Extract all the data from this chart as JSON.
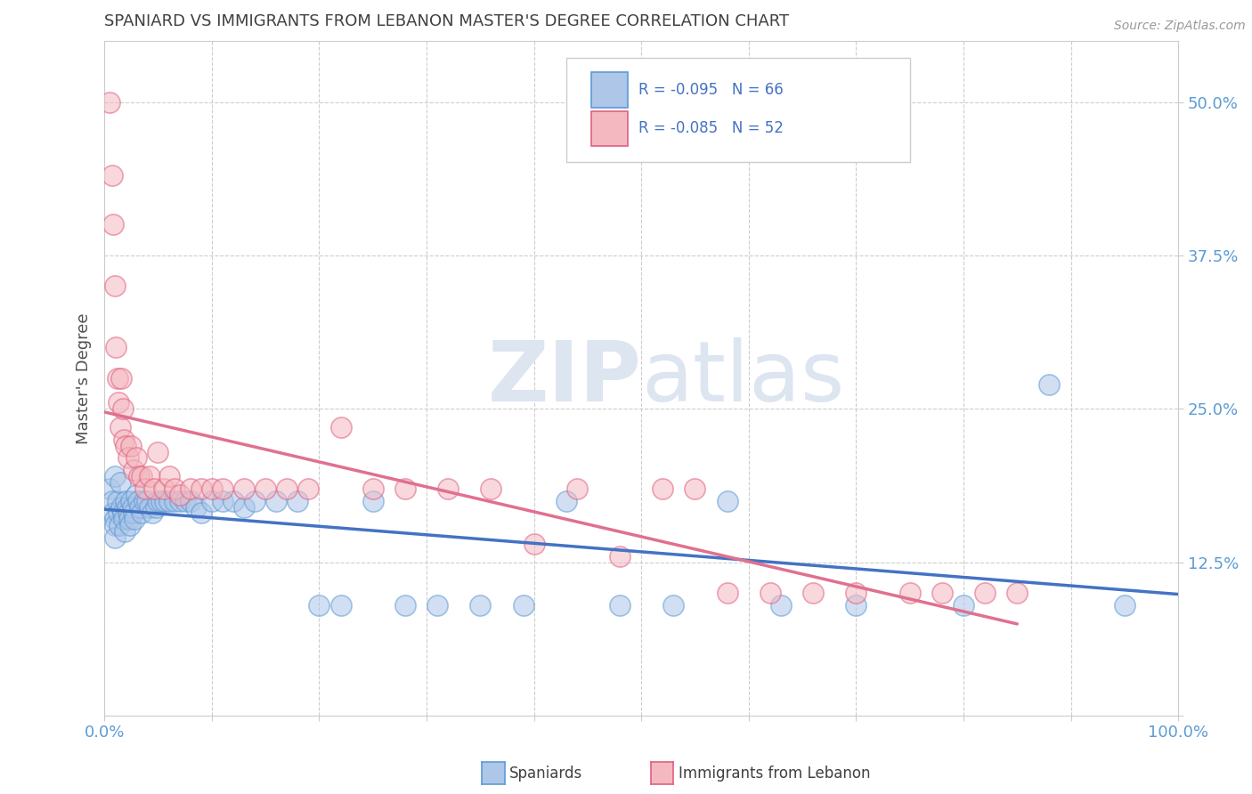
{
  "title": "SPANIARD VS IMMIGRANTS FROM LEBANON MASTER'S DEGREE CORRELATION CHART",
  "source_text": "Source: ZipAtlas.com",
  "ylabel": "Master's Degree",
  "legend_label_1": "Spaniards",
  "legend_label_2": "Immigrants from Lebanon",
  "r1": -0.095,
  "n1": 66,
  "r2": -0.085,
  "n2": 52,
  "color1": "#aec6e8",
  "color2": "#f4b8c0",
  "edge_color1": "#5b9bd5",
  "edge_color2": "#e06080",
  "line_color1": "#4472c4",
  "line_color2": "#e07090",
  "bg_color": "#ffffff",
  "grid_color": "#c8c8c8",
  "axis_label_color": "#5b9bd5",
  "title_color": "#404040",
  "watermark_color": "#dde5f0",
  "xlim": [
    0.0,
    1.0
  ],
  "ylim": [
    0.0,
    0.55
  ],
  "xticks": [
    0.0,
    0.1,
    0.2,
    0.3,
    0.4,
    0.5,
    0.6,
    0.7,
    0.8,
    0.9,
    1.0
  ],
  "yticks": [
    0.0,
    0.125,
    0.25,
    0.375,
    0.5
  ],
  "xtick_labels": [
    "0.0%",
    "",
    "",
    "",
    "",
    "",
    "",
    "",
    "",
    "",
    "100.0%"
  ],
  "ytick_labels": [
    "",
    "12.5%",
    "25.0%",
    "37.5%",
    "50.0%"
  ],
  "spaniards_x": [
    0.005,
    0.007,
    0.008,
    0.01,
    0.01,
    0.01,
    0.01,
    0.012,
    0.013,
    0.014,
    0.015,
    0.016,
    0.017,
    0.018,
    0.019,
    0.02,
    0.021,
    0.022,
    0.023,
    0.024,
    0.025,
    0.026,
    0.027,
    0.028,
    0.03,
    0.031,
    0.033,
    0.035,
    0.037,
    0.04,
    0.042,
    0.045,
    0.048,
    0.05,
    0.053,
    0.056,
    0.06,
    0.065,
    0.07,
    0.075,
    0.08,
    0.085,
    0.09,
    0.1,
    0.11,
    0.12,
    0.13,
    0.14,
    0.16,
    0.18,
    0.2,
    0.22,
    0.25,
    0.28,
    0.31,
    0.35,
    0.39,
    0.43,
    0.48,
    0.53,
    0.58,
    0.63,
    0.7,
    0.8,
    0.88,
    0.95
  ],
  "spaniards_y": [
    0.185,
    0.175,
    0.165,
    0.195,
    0.16,
    0.155,
    0.145,
    0.175,
    0.165,
    0.155,
    0.19,
    0.17,
    0.165,
    0.16,
    0.15,
    0.175,
    0.17,
    0.165,
    0.16,
    0.155,
    0.175,
    0.17,
    0.165,
    0.16,
    0.18,
    0.175,
    0.17,
    0.165,
    0.175,
    0.175,
    0.17,
    0.165,
    0.17,
    0.175,
    0.175,
    0.175,
    0.175,
    0.175,
    0.175,
    0.175,
    0.175,
    0.17,
    0.165,
    0.175,
    0.175,
    0.175,
    0.17,
    0.175,
    0.175,
    0.175,
    0.09,
    0.09,
    0.175,
    0.09,
    0.09,
    0.09,
    0.09,
    0.175,
    0.09,
    0.09,
    0.175,
    0.09,
    0.09,
    0.09,
    0.27,
    0.09
  ],
  "lebanon_x": [
    0.005,
    0.007,
    0.008,
    0.01,
    0.011,
    0.012,
    0.013,
    0.015,
    0.016,
    0.017,
    0.018,
    0.02,
    0.022,
    0.025,
    0.027,
    0.03,
    0.032,
    0.035,
    0.038,
    0.042,
    0.046,
    0.05,
    0.055,
    0.06,
    0.065,
    0.07,
    0.08,
    0.09,
    0.1,
    0.11,
    0.13,
    0.15,
    0.17,
    0.19,
    0.22,
    0.25,
    0.28,
    0.32,
    0.36,
    0.4,
    0.44,
    0.48,
    0.52,
    0.55,
    0.58,
    0.62,
    0.66,
    0.7,
    0.75,
    0.78,
    0.82,
    0.85
  ],
  "lebanon_y": [
    0.5,
    0.44,
    0.4,
    0.35,
    0.3,
    0.275,
    0.255,
    0.235,
    0.275,
    0.25,
    0.225,
    0.22,
    0.21,
    0.22,
    0.2,
    0.21,
    0.195,
    0.195,
    0.185,
    0.195,
    0.185,
    0.215,
    0.185,
    0.195,
    0.185,
    0.18,
    0.185,
    0.185,
    0.185,
    0.185,
    0.185,
    0.185,
    0.185,
    0.185,
    0.235,
    0.185,
    0.185,
    0.185,
    0.185,
    0.14,
    0.185,
    0.13,
    0.185,
    0.185,
    0.1,
    0.1,
    0.1,
    0.1,
    0.1,
    0.1,
    0.1,
    0.1
  ]
}
